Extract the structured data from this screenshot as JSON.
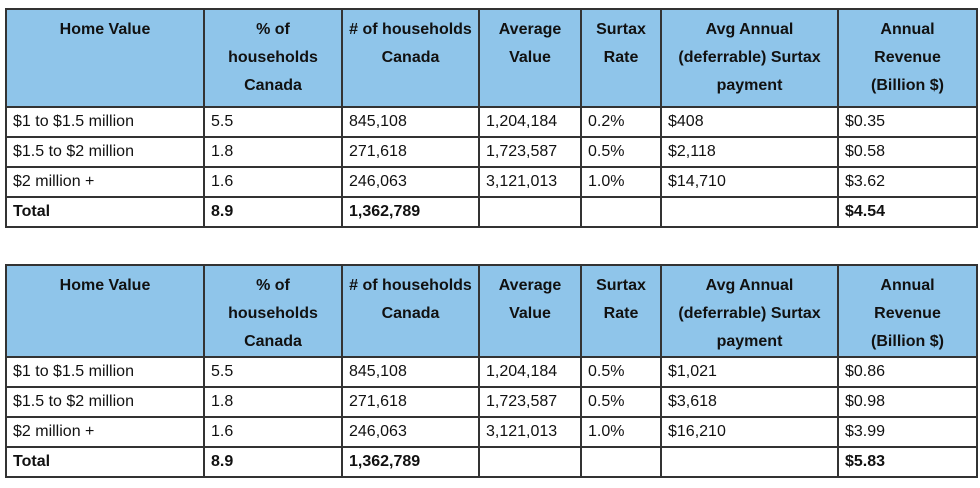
{
  "tables": [
    {
      "headers": [
        "Home Value",
        "% of households Canada",
        "# of households Canada",
        "Average Value",
        "Surtax Rate",
        "Avg Annual (deferrable) Surtax payment",
        "Annual Revenue (Billion $)"
      ],
      "rows": [
        [
          "$1 to $1.5 million",
          "5.5",
          "845,108",
          "1,204,184",
          "0.2%",
          "$408",
          "$0.35"
        ],
        [
          "$1.5 to $2 million",
          "1.8",
          "271,618",
          "1,723,587",
          "0.5%",
          "$2,118",
          "$0.58"
        ],
        [
          "$2 million +",
          "1.6",
          "246,063",
          "3,121,013",
          "1.0%",
          "$14,710",
          "$3.62"
        ],
        [
          "Total",
          "8.9",
          "1,362,789",
          "",
          "",
          "",
          "$4.54"
        ]
      ]
    },
    {
      "headers": [
        "Home Value",
        "% of households Canada",
        "# of households Canada",
        "Average Value",
        "Surtax Rate",
        "Avg Annual (deferrable) Surtax payment",
        "Annual Revenue (Billion $)"
      ],
      "rows": [
        [
          "$1 to $1.5 million",
          "5.5",
          "845,108",
          "1,204,184",
          "0.5%",
          "$1,021",
          "$0.86"
        ],
        [
          "$1.5 to $2 million",
          "1.8",
          "271,618",
          "1,723,587",
          "0.5%",
          "$3,618",
          "$0.98"
        ],
        [
          "$2 million +",
          "1.6",
          "246,063",
          "3,121,013",
          "1.0%",
          "$16,210",
          "$3.99"
        ],
        [
          "Total",
          "8.9",
          "1,362,789",
          "",
          "",
          "",
          "$5.83"
        ]
      ]
    }
  ],
  "colors": {
    "header_bg": "#8fc5ea",
    "border": "#333333"
  }
}
